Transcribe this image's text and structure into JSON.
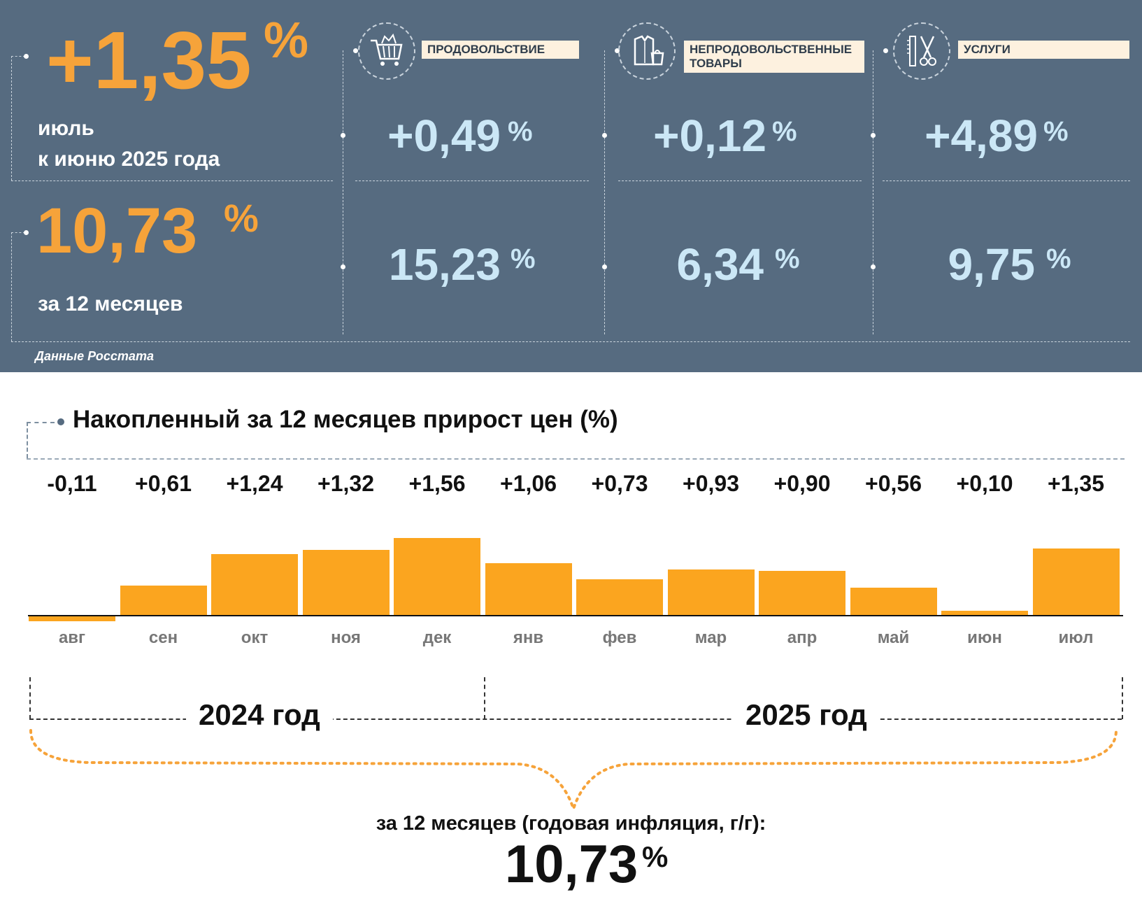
{
  "header": {
    "monthly_value": "+1,35",
    "monthly_unit": "%",
    "monthly_label_1": "июль",
    "monthly_label_2": "к июню 2025 года",
    "annual_value": "10,73",
    "annual_unit": "%",
    "annual_label": "за 12 месяцев",
    "source": "Данные Росстата"
  },
  "categories": [
    {
      "icon": "shopping-cart-icon",
      "label": "ПРОДОВОЛЬСТВИЕ",
      "monthly": "+0,49",
      "annual": "15,23",
      "unit": "%"
    },
    {
      "icon": "clothing-bag-icon",
      "label": "НЕПРОДОВОЛЬСТВЕННЫЕ ТОВАРЫ",
      "monthly": "+0,12",
      "annual": "6,34",
      "unit": "%"
    },
    {
      "icon": "scissors-comb-icon",
      "label": "УСЛУГИ",
      "monthly": "+4,89",
      "annual": "9,75",
      "unit": "%"
    }
  ],
  "chart_data": {
    "type": "bar",
    "title": "Накопленный за 12 месяцев прирост цен (%)",
    "categories": [
      "авг",
      "сен",
      "окт",
      "ноя",
      "дек",
      "янв",
      "фев",
      "мар",
      "апр",
      "май",
      "июн",
      "июл"
    ],
    "values": [
      -0.11,
      0.61,
      1.24,
      1.32,
      1.56,
      1.06,
      0.73,
      0.93,
      0.9,
      0.56,
      0.1,
      1.35
    ],
    "value_labels": [
      "-0,11",
      "+0,61",
      "+1,24",
      "+1,32",
      "+1,56",
      "+1,06",
      "+0,73",
      "+0,93",
      "+0,90",
      "+0,56",
      "+0,10",
      "+1,35"
    ],
    "bar_color": "#fba51f",
    "year_labels": [
      "2024 год",
      "2025 год"
    ],
    "summary_label": "за 12 месяцев (годовая инфляция, г/г):",
    "summary_value": "10,73",
    "summary_unit": "%"
  }
}
